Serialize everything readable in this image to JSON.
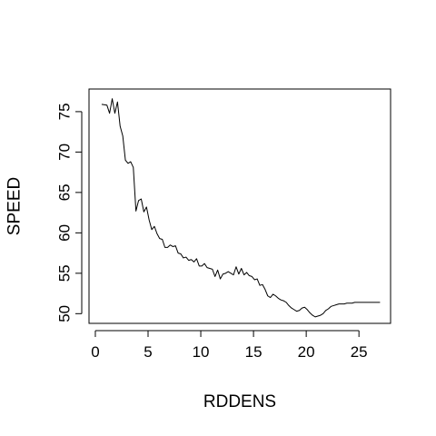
{
  "chart_data": {
    "type": "line",
    "xlabel": "RDDENS",
    "ylabel": "SPEED",
    "xlim": [
      -0.6,
      28.0
    ],
    "ylim": [
      48.8,
      77.8
    ],
    "xticks": [
      0,
      5,
      10,
      15,
      20,
      25
    ],
    "yticks": [
      50,
      55,
      60,
      65,
      70,
      75
    ],
    "series": [
      {
        "x": [
          0.6,
          1.1,
          1.35,
          1.6,
          1.85,
          2.1,
          2.35,
          2.6,
          2.85,
          3.1,
          3.35,
          3.6,
          3.85,
          4.1,
          4.35,
          4.6,
          4.85,
          5.1,
          5.35,
          5.6,
          5.85,
          6.1,
          6.35,
          6.6,
          6.85,
          7.1,
          7.35,
          7.6,
          7.85,
          8.1,
          8.35,
          8.6,
          8.85,
          9.1,
          9.35,
          9.6,
          9.85,
          10.1,
          10.35,
          10.6,
          10.85,
          11.1,
          11.35,
          11.6,
          11.85,
          12.1,
          12.35,
          12.6,
          12.85,
          13.1,
          13.35,
          13.6,
          13.85,
          14.1,
          14.35,
          14.6,
          14.85,
          15.1,
          15.35,
          15.6,
          15.85,
          16.1,
          16.35,
          16.6,
          16.85,
          17.1,
          17.35,
          17.6,
          17.85,
          18.1,
          18.35,
          18.6,
          18.85,
          19.1,
          19.35,
          19.6,
          19.85,
          20.1,
          20.35,
          20.6,
          20.85,
          21.1,
          21.35,
          21.6,
          21.85,
          22.1,
          22.35,
          22.6,
          22.85,
          23.1,
          23.35,
          23.6,
          23.85,
          24.1,
          24.35,
          24.6,
          24.85,
          25.1,
          25.35,
          25.6,
          25.85,
          26.1,
          26.35,
          26.6,
          26.85,
          27.0
        ],
        "y": [
          75.9,
          75.8,
          74.8,
          76.6,
          74.8,
          76.2,
          73.2,
          72.0,
          69.0,
          68.6,
          68.8,
          68.1,
          62.7,
          64.0,
          64.2,
          62.6,
          63.2,
          61.6,
          60.4,
          60.8,
          59.9,
          59.3,
          59.2,
          58.2,
          58.2,
          58.5,
          58.3,
          58.4,
          57.5,
          57.4,
          56.9,
          57.0,
          56.6,
          56.7,
          56.4,
          56.8,
          55.9,
          55.9,
          56.2,
          55.7,
          55.6,
          55.5,
          54.6,
          55.4,
          54.3,
          54.9,
          55.0,
          55.2,
          55.0,
          54.8,
          55.8,
          54.9,
          55.6,
          54.8,
          55.1,
          54.7,
          54.6,
          54.2,
          54.3,
          53.5,
          53.6,
          53.0,
          52.2,
          52.0,
          52.4,
          52.2,
          51.9,
          51.7,
          51.6,
          51.4,
          51.0,
          50.7,
          50.5,
          50.3,
          50.4,
          50.7,
          50.8,
          50.5,
          50.1,
          49.8,
          49.6,
          49.7,
          49.8,
          50.0,
          50.4,
          50.6,
          50.9,
          51.0,
          51.1,
          51.2,
          51.2,
          51.2,
          51.3,
          51.3,
          51.3,
          51.4,
          51.4,
          51.4,
          51.4,
          51.4,
          51.4,
          51.4,
          51.4,
          51.4,
          51.4,
          51.4
        ]
      }
    ]
  }
}
